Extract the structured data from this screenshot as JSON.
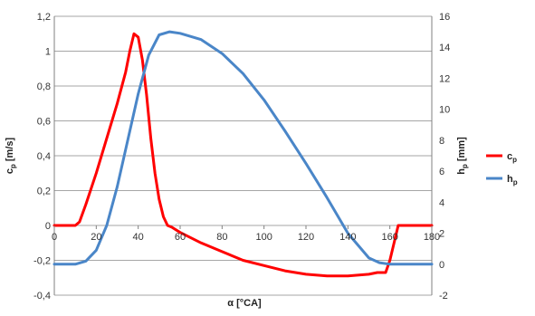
{
  "chart_data": {
    "type": "line",
    "x_axis": {
      "label": "α [°CA]",
      "min": 0,
      "max": 180,
      "step": 20,
      "ticks": [
        "0",
        "20",
        "40",
        "60",
        "80",
        "100",
        "120",
        "140",
        "160",
        "180"
      ]
    },
    "y_left": {
      "label": "c",
      "subscript": "p",
      "unit": "[m/s]",
      "min": -0.4,
      "max": 1.2,
      "step": 0.2,
      "ticks": [
        "-0,4",
        "-0,2",
        "0",
        "0,2",
        "0,4",
        "0,6",
        "0,8",
        "1",
        "1,2"
      ]
    },
    "y_right": {
      "label": "h",
      "subscript": "p",
      "unit": "[mm]",
      "min": -2,
      "max": 16,
      "step": 2,
      "ticks": [
        "-2",
        "0",
        "2",
        "4",
        "6",
        "8",
        "10",
        "12",
        "14",
        "16"
      ]
    },
    "grid": {
      "horizontal": true,
      "vertical": false
    },
    "legend_position": "right",
    "series": [
      {
        "name": "c",
        "subscript": "p",
        "axis": "left",
        "color": "#ff0000",
        "x": [
          0,
          10,
          12,
          15,
          20,
          25,
          30,
          34,
          36,
          38,
          40,
          42,
          44,
          46,
          48,
          50,
          52,
          54,
          56,
          60,
          70,
          80,
          90,
          100,
          110,
          120,
          130,
          140,
          150,
          154,
          158,
          160,
          162,
          164,
          166,
          170,
          180
        ],
        "y": [
          0,
          0,
          0.02,
          0.12,
          0.3,
          0.5,
          0.7,
          0.88,
          1.0,
          1.1,
          1.08,
          0.95,
          0.75,
          0.5,
          0.3,
          0.15,
          0.05,
          0,
          -0.01,
          -0.04,
          -0.1,
          -0.15,
          -0.2,
          -0.23,
          -0.26,
          -0.28,
          -0.29,
          -0.29,
          -0.28,
          -0.27,
          -0.27,
          -0.2,
          -0.1,
          0,
          0,
          0,
          0
        ]
      },
      {
        "name": "h",
        "subscript": "p",
        "axis": "right",
        "color": "#4a86c8",
        "x": [
          0,
          10,
          15,
          20,
          25,
          30,
          35,
          40,
          45,
          50,
          55,
          60,
          70,
          80,
          90,
          100,
          110,
          120,
          130,
          140,
          150,
          155,
          160,
          163,
          165,
          170,
          180
        ],
        "y": [
          0,
          0,
          0.2,
          0.9,
          2.5,
          5.0,
          8.0,
          11.0,
          13.5,
          14.8,
          15.0,
          14.9,
          14.5,
          13.6,
          12.3,
          10.6,
          8.6,
          6.5,
          4.3,
          2.0,
          0.4,
          0.1,
          0,
          0,
          0,
          0,
          0
        ]
      }
    ]
  }
}
